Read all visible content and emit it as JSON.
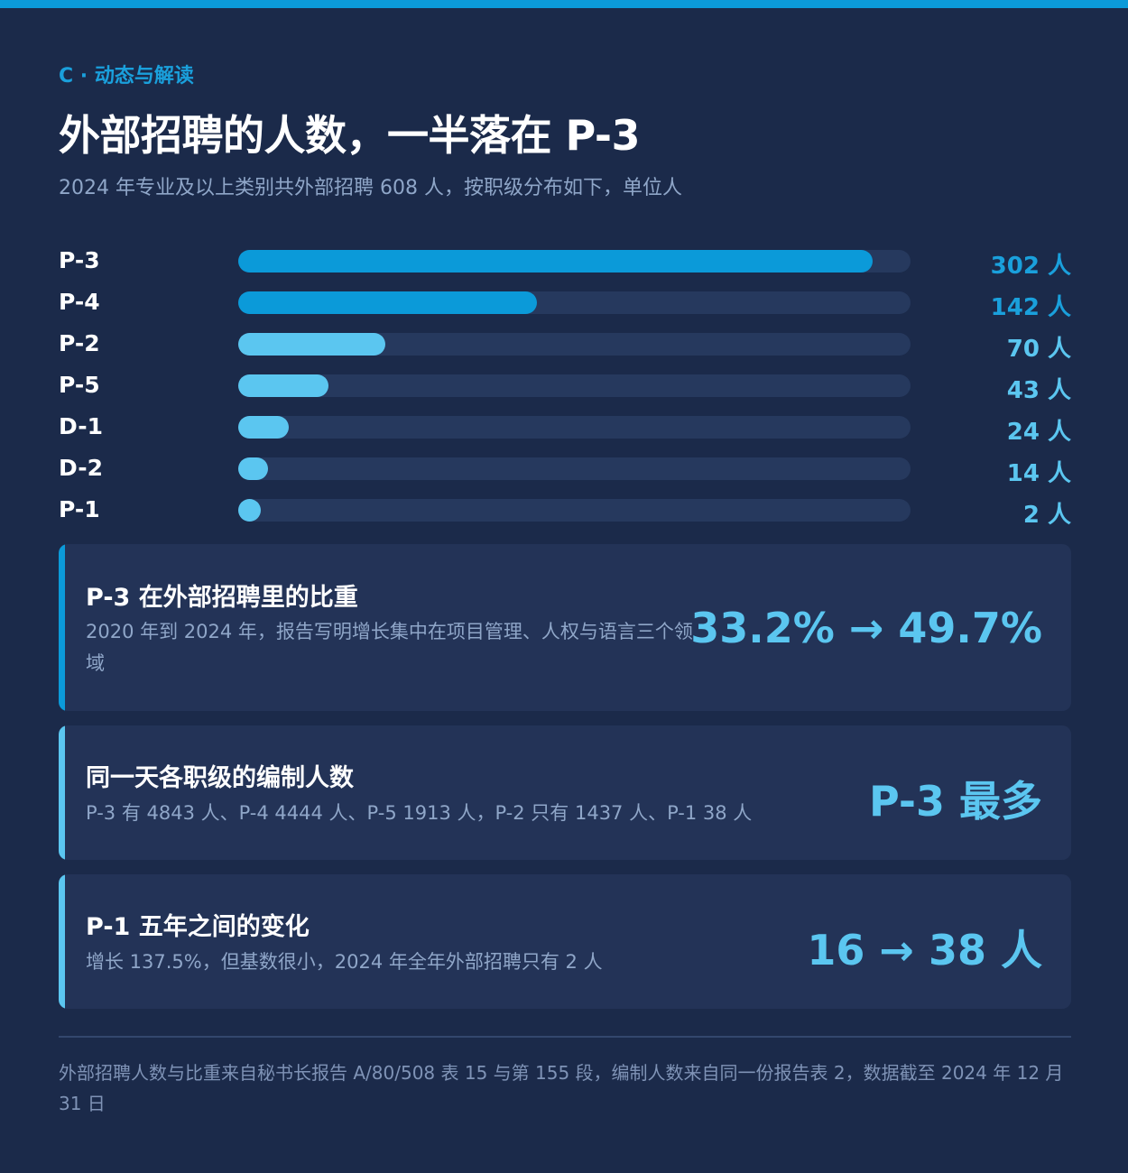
{
  "header": {
    "eyebrow": "C · 动态与解读",
    "title": "外部招聘的人数，一半落在 P-3",
    "subtitle": "2024 年专业及以上类别共外部招聘 608 人，按职级分布如下，单位人"
  },
  "colors": {
    "background": "#1b2a4a",
    "accent": "#0b9ad9",
    "bar_primary": "#0b9ad9",
    "bar_light": "#5bc6f0",
    "track": "#26395e",
    "card": "#233357",
    "muted_text": "#8fa6c8"
  },
  "chart_data": {
    "type": "bar",
    "orientation": "horizontal",
    "unit": "人",
    "categories": [
      "P-3",
      "P-4",
      "P-2",
      "P-5",
      "D-1",
      "D-2",
      "P-1"
    ],
    "values": [
      302,
      142,
      70,
      43,
      24,
      14,
      2
    ],
    "value_labels": [
      "302 人",
      "142 人",
      "70 人",
      "43 人",
      "24 人",
      "14 人",
      "2 人"
    ],
    "highlight": [
      true,
      true,
      false,
      false,
      false,
      false,
      false
    ],
    "xlim": [
      0,
      320
    ],
    "grid": false,
    "legend": "none"
  },
  "cards": [
    {
      "title": "P-3 在外部招聘里的比重",
      "desc": "2020 年到 2024 年，报告写明增长集中在项目管理、人权与语言三个领域",
      "big": "33.2% → 49.7%",
      "accent": "#0b9ad9"
    },
    {
      "title": "同一天各职级的编制人数",
      "desc": "P-3 有 4843 人、P-4 4444 人、P-5 1913 人，P-2 只有 1437 人、P-1 38 人",
      "big": "P-3 最多",
      "accent": "#5bc6f0"
    },
    {
      "title": "P-1 五年之间的变化",
      "desc": "增长 137.5%，但基数很小，2024 年全年外部招聘只有 2 人",
      "big": "16 → 38 人",
      "accent": "#5bc6f0"
    }
  ],
  "footer": "外部招聘人数与比重来自秘书长报告 A/80/508 表 15 与第 155 段，编制人数来自同一份报告表 2，数据截至 2024 年 12 月 31 日"
}
